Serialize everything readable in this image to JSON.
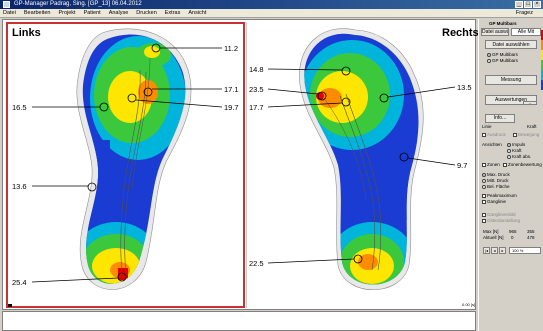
{
  "window": {
    "title": "GP-Manager        Padrag, Sing. [GP_13]   06.04.2012",
    "menu": [
      "Datei",
      "Bearbeiten",
      "Projekt",
      "Patient",
      "Analyse",
      "Drucken",
      "Extras",
      "Ansicht"
    ],
    "menu_right": "Fragez"
  },
  "panels": {
    "left_title": "Links",
    "right_title": "Rechts",
    "left_labels": [
      "11.2",
      "17.1",
      "16.5",
      "19.7",
      "13.6",
      "25.4"
    ],
    "right_labels": [
      "14.8",
      "23.5",
      "13.5",
      "17.7",
      "9.7",
      "22.5"
    ],
    "status_value": "0.00 [s]"
  },
  "sidebar": {
    "header": "GP Multibars",
    "dropdown": "Alle Mit",
    "btn_select": "Datei auswählen",
    "radio_a": "GP Multibars",
    "radio_b": "GP Multibars",
    "btn_measure": "Messung",
    "btn_eval": "Auswertungen",
    "btn_small": "Info...",
    "nav_labels": [
      "Linie",
      "Kraft"
    ],
    "opt_box1": "Ausdruck",
    "opt_box2": "Bewegung",
    "view_label": "Ansichten",
    "view_a": "Impuls",
    "view_b": "Kraft",
    "view_c": "Kraft abs.",
    "zones": "Zonen",
    "zones_mark": "Zonenbewertung",
    "max": "Max. Druck",
    "mittel": "Mitt. Druck",
    "flaeche": "Bel. Fläche",
    "peak": "Peakmaximum",
    "ganglinie": "Ganglinie",
    "grey1": "Ganglinienbild",
    "grey2": "Gitterdarstellung",
    "max_label": "Max [N]",
    "max_v1": "965",
    "max_v2": "355",
    "akt_label": "Aktuell [N]",
    "akt_v1": "0",
    "akt_v2": "478",
    "zoom": "100 %"
  },
  "colors": {
    "red": "#e00000",
    "orange": "#ff8c00",
    "yellow": "#ffe600",
    "green": "#3cc83c",
    "cyan": "#00b4dc",
    "blue": "#1a3cd2",
    "frame": "#c83232"
  }
}
